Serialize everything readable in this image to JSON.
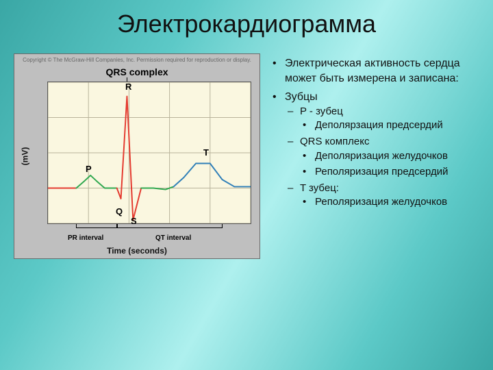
{
  "slide": {
    "title": "Электрокардиограмма",
    "background_gradient": [
      "#3aa7a5",
      "#5cc9c7",
      "#aef0ee"
    ],
    "title_fontsize": 36,
    "body_fontsize": 16
  },
  "chart": {
    "type": "line",
    "copyright": "Copyright © The McGraw-Hill Companies, Inc. Permission required for reproduction or display.",
    "title": "QRS complex",
    "title_fontsize": 14,
    "xlabel": "Time (seconds)",
    "ylabel": "(mV)",
    "label_fontsize": 12,
    "plot_background": "#faf7e0",
    "panel_background": "#bfbfbf",
    "grid_color": "#b8b39a",
    "axis_color": "#555555",
    "xlim": [
      0,
      1.0
    ],
    "ylim": [
      -0.5,
      1.5
    ],
    "x_ticks": [
      0,
      0.2,
      0.4,
      0.6,
      0.8,
      1.0
    ],
    "y_ticks": [
      -0.5,
      0,
      0.5,
      1.0,
      1.5
    ],
    "segments": [
      {
        "name": "pre-P",
        "color": "#e43a2f",
        "line_width": 2,
        "points": [
          [
            0.0,
            0.0
          ],
          [
            0.1,
            0.0
          ],
          [
            0.14,
            0.0
          ]
        ]
      },
      {
        "name": "P-wave",
        "color": "#2fa84f",
        "line_width": 2,
        "points": [
          [
            0.14,
            0.0
          ],
          [
            0.18,
            0.1
          ],
          [
            0.21,
            0.18
          ],
          [
            0.24,
            0.1
          ],
          [
            0.28,
            0.0
          ],
          [
            0.34,
            0.0
          ]
        ]
      },
      {
        "name": "QRS-complex",
        "color": "#e43a2f",
        "line_width": 2,
        "points": [
          [
            0.34,
            0.0
          ],
          [
            0.36,
            -0.15
          ],
          [
            0.39,
            1.3
          ],
          [
            0.42,
            -0.45
          ],
          [
            0.46,
            0.0
          ]
        ]
      },
      {
        "name": "ST-segment",
        "color": "#2fa84f",
        "line_width": 2,
        "points": [
          [
            0.46,
            0.0
          ],
          [
            0.52,
            0.0
          ],
          [
            0.58,
            -0.02
          ],
          [
            0.62,
            0.02
          ]
        ]
      },
      {
        "name": "T-wave",
        "color": "#2f7fb8",
        "line_width": 2,
        "points": [
          [
            0.62,
            0.02
          ],
          [
            0.67,
            0.15
          ],
          [
            0.73,
            0.35
          ],
          [
            0.8,
            0.35
          ],
          [
            0.86,
            0.12
          ],
          [
            0.92,
            0.02
          ],
          [
            1.0,
            0.02
          ]
        ]
      }
    ],
    "point_labels": {
      "R": "R",
      "P": "P",
      "Q": "Q",
      "S": "S",
      "T": "T"
    },
    "interval_labels": {
      "PR": "PR interval",
      "QT": "QT interval"
    }
  },
  "bullets": {
    "l1a": "Электрическая активность сердца может быть измерена и записана:",
    "l1b": "Зубцы",
    "l2a": "P - зубец",
    "l2b": "QRS комплекс",
    "l2c": "T зубец:",
    "l3a": "Деполярзация предсердий",
    "l3b": "Деполяризация желудочков",
    "l3c": "Реполяризация предсердий",
    "l3d": "Реполяризация желудочков"
  }
}
